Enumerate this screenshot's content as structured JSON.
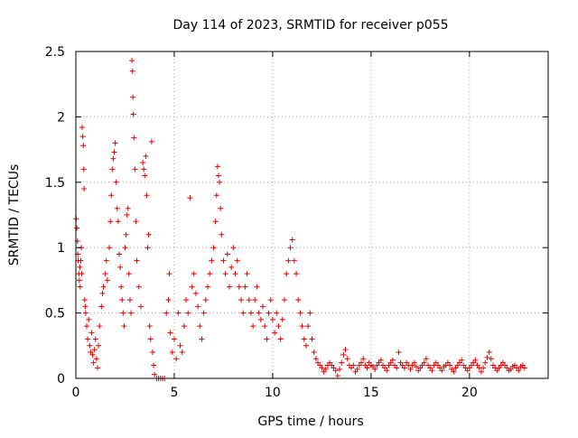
{
  "chart_data": {
    "type": "scatter",
    "title": "Day 114 of 2023, SRMTID for receiver p055",
    "xlabel": "GPS time / hours",
    "ylabel": "SRMTID / TECUs",
    "xlim": [
      0,
      24
    ],
    "ylim": [
      0,
      2.5
    ],
    "x_ticks": [
      0,
      5,
      10,
      15,
      20
    ],
    "x_tick_labels": [
      "0",
      "5",
      "10",
      "15",
      "20"
    ],
    "y_ticks": [
      0,
      0.5,
      1,
      1.5,
      2,
      2.5
    ],
    "y_tick_labels": [
      "0",
      "0.5",
      "1",
      "1.5",
      "2",
      "2.5"
    ],
    "grid": true,
    "marker": "+",
    "colors": {
      "points": "#e00000",
      "axes": "#000000",
      "grid": "#a0a0a0"
    },
    "series": [
      {
        "name": "SRMTID",
        "points": [
          [
            0.02,
            1.22
          ],
          [
            0.05,
            1.15
          ],
          [
            0.08,
            1.05
          ],
          [
            0.1,
            0.95
          ],
          [
            0.12,
            0.9
          ],
          [
            0.15,
            0.8
          ],
          [
            0.18,
            0.75
          ],
          [
            0.2,
            0.85
          ],
          [
            0.22,
            0.7
          ],
          [
            0.25,
            0.9
          ],
          [
            0.28,
            1.0
          ],
          [
            0.3,
            0.8
          ],
          [
            0.32,
            1.92
          ],
          [
            0.35,
            1.85
          ],
          [
            0.38,
            1.78
          ],
          [
            0.4,
            1.6
          ],
          [
            0.42,
            1.45
          ],
          [
            0.45,
            0.6
          ],
          [
            0.48,
            0.55
          ],
          [
            0.5,
            0.5
          ],
          [
            0.55,
            0.4
          ],
          [
            0.6,
            0.3
          ],
          [
            0.65,
            0.45
          ],
          [
            0.7,
            0.25
          ],
          [
            0.75,
            0.2
          ],
          [
            0.8,
            0.35
          ],
          [
            0.85,
            0.18
          ],
          [
            0.9,
            0.12
          ],
          [
            0.95,
            0.22
          ],
          [
            1.0,
            0.3
          ],
          [
            1.05,
            0.15
          ],
          [
            1.1,
            0.08
          ],
          [
            1.15,
            0.25
          ],
          [
            1.2,
            0.4
          ],
          [
            1.3,
            0.55
          ],
          [
            1.35,
            0.65
          ],
          [
            1.4,
            0.7
          ],
          [
            1.5,
            0.8
          ],
          [
            1.55,
            0.9
          ],
          [
            1.6,
            0.75
          ],
          [
            1.7,
            1.0
          ],
          [
            1.75,
            1.2
          ],
          [
            1.8,
            1.4
          ],
          [
            1.85,
            1.6
          ],
          [
            1.9,
            1.68
          ],
          [
            1.95,
            1.73
          ],
          [
            2.0,
            1.8
          ],
          [
            2.05,
            1.5
          ],
          [
            2.1,
            1.3
          ],
          [
            2.15,
            1.2
          ],
          [
            2.2,
            0.95
          ],
          [
            2.25,
            0.85
          ],
          [
            2.3,
            0.7
          ],
          [
            2.35,
            0.6
          ],
          [
            2.4,
            0.5
          ],
          [
            2.45,
            0.4
          ],
          [
            2.5,
            1.0
          ],
          [
            2.55,
            1.1
          ],
          [
            2.6,
            1.25
          ],
          [
            2.65,
            1.3
          ],
          [
            2.7,
            0.8
          ],
          [
            2.75,
            0.6
          ],
          [
            2.8,
            0.5
          ],
          [
            2.85,
            2.43
          ],
          [
            2.88,
            2.35
          ],
          [
            2.9,
            2.15
          ],
          [
            2.92,
            2.02
          ],
          [
            2.95,
            1.84
          ],
          [
            3.0,
            1.6
          ],
          [
            3.05,
            1.2
          ],
          [
            3.1,
            0.9
          ],
          [
            3.2,
            0.7
          ],
          [
            3.3,
            0.55
          ],
          [
            3.4,
            1.65
          ],
          [
            3.45,
            1.6
          ],
          [
            3.5,
            1.55
          ],
          [
            3.55,
            1.7
          ],
          [
            3.6,
            1.4
          ],
          [
            3.65,
            1.0
          ],
          [
            3.7,
            1.1
          ],
          [
            3.75,
            0.4
          ],
          [
            3.8,
            0.3
          ],
          [
            3.85,
            1.81
          ],
          [
            3.9,
            0.2
          ],
          [
            3.95,
            0.1
          ],
          [
            4.0,
            0.03
          ],
          [
            4.1,
            0.0
          ],
          [
            4.2,
            0.0
          ],
          [
            4.3,
            0.0
          ],
          [
            4.4,
            0.0
          ],
          [
            4.5,
            0.0
          ],
          [
            4.6,
            0.5
          ],
          [
            4.7,
            0.6
          ],
          [
            4.75,
            0.8
          ],
          [
            4.8,
            0.35
          ],
          [
            4.9,
            0.2
          ],
          [
            5.0,
            0.3
          ],
          [
            5.1,
            0.15
          ],
          [
            5.2,
            0.5
          ],
          [
            5.3,
            0.25
          ],
          [
            5.4,
            0.2
          ],
          [
            5.5,
            0.4
          ],
          [
            5.6,
            0.6
          ],
          [
            5.7,
            0.5
          ],
          [
            5.8,
            1.38
          ],
          [
            5.9,
            0.7
          ],
          [
            6.0,
            0.8
          ],
          [
            6.1,
            0.65
          ],
          [
            6.2,
            0.55
          ],
          [
            6.3,
            0.4
          ],
          [
            6.4,
            0.3
          ],
          [
            6.5,
            0.5
          ],
          [
            6.6,
            0.6
          ],
          [
            6.7,
            0.7
          ],
          [
            6.8,
            0.8
          ],
          [
            6.9,
            0.9
          ],
          [
            7.0,
            1.0
          ],
          [
            7.1,
            1.2
          ],
          [
            7.15,
            1.4
          ],
          [
            7.2,
            1.62
          ],
          [
            7.25,
            1.55
          ],
          [
            7.3,
            1.5
          ],
          [
            7.35,
            1.3
          ],
          [
            7.4,
            1.1
          ],
          [
            7.5,
            0.9
          ],
          [
            7.6,
            0.8
          ],
          [
            7.7,
            0.95
          ],
          [
            7.8,
            0.7
          ],
          [
            7.9,
            0.85
          ],
          [
            8.0,
            1.0
          ],
          [
            8.1,
            0.8
          ],
          [
            8.2,
            0.9
          ],
          [
            8.3,
            0.7
          ],
          [
            8.4,
            0.6
          ],
          [
            8.5,
            0.5
          ],
          [
            8.6,
            0.7
          ],
          [
            8.7,
            0.8
          ],
          [
            8.8,
            0.6
          ],
          [
            8.9,
            0.5
          ],
          [
            9.0,
            0.4
          ],
          [
            9.1,
            0.6
          ],
          [
            9.2,
            0.7
          ],
          [
            9.3,
            0.5
          ],
          [
            9.4,
            0.45
          ],
          [
            9.5,
            0.55
          ],
          [
            9.6,
            0.4
          ],
          [
            9.7,
            0.3
          ],
          [
            9.8,
            0.5
          ],
          [
            9.9,
            0.6
          ],
          [
            10.0,
            0.45
          ],
          [
            10.1,
            0.35
          ],
          [
            10.2,
            0.5
          ],
          [
            10.3,
            0.4
          ],
          [
            10.4,
            0.3
          ],
          [
            10.5,
            0.45
          ],
          [
            10.6,
            0.6
          ],
          [
            10.7,
            0.8
          ],
          [
            10.8,
            0.9
          ],
          [
            10.9,
            1.0
          ],
          [
            11.0,
            1.06
          ],
          [
            11.1,
            0.9
          ],
          [
            11.2,
            0.8
          ],
          [
            11.3,
            0.6
          ],
          [
            11.4,
            0.5
          ],
          [
            11.5,
            0.4
          ],
          [
            11.6,
            0.3
          ],
          [
            11.7,
            0.25
          ],
          [
            11.8,
            0.4
          ],
          [
            11.9,
            0.5
          ],
          [
            12.0,
            0.3
          ],
          [
            12.1,
            0.2
          ],
          [
            12.2,
            0.15
          ],
          [
            12.3,
            0.12
          ],
          [
            12.4,
            0.1
          ],
          [
            12.5,
            0.08
          ],
          [
            12.6,
            0.05
          ],
          [
            12.7,
            0.07
          ],
          [
            12.8,
            0.1
          ],
          [
            12.9,
            0.12
          ],
          [
            13.0,
            0.1
          ],
          [
            13.1,
            0.08
          ],
          [
            13.2,
            0.06
          ],
          [
            13.3,
            0.02
          ],
          [
            13.4,
            0.07
          ],
          [
            13.5,
            0.12
          ],
          [
            13.6,
            0.18
          ],
          [
            13.7,
            0.22
          ],
          [
            13.8,
            0.15
          ],
          [
            13.9,
            0.1
          ],
          [
            14.0,
            0.08
          ],
          [
            14.1,
            0.1
          ],
          [
            14.2,
            0.05
          ],
          [
            14.3,
            0.07
          ],
          [
            14.4,
            0.1
          ],
          [
            14.5,
            0.12
          ],
          [
            14.6,
            0.15
          ],
          [
            14.7,
            0.1
          ],
          [
            14.8,
            0.08
          ],
          [
            14.9,
            0.12
          ],
          [
            15.0,
            0.1
          ],
          [
            15.1,
            0.09
          ],
          [
            15.2,
            0.07
          ],
          [
            15.3,
            0.1
          ],
          [
            15.4,
            0.12
          ],
          [
            15.5,
            0.14
          ],
          [
            15.6,
            0.1
          ],
          [
            15.7,
            0.08
          ],
          [
            15.8,
            0.06
          ],
          [
            15.9,
            0.1
          ],
          [
            16.0,
            0.12
          ],
          [
            16.1,
            0.14
          ],
          [
            16.2,
            0.1
          ],
          [
            16.3,
            0.08
          ],
          [
            16.4,
            0.2
          ],
          [
            16.5,
            0.12
          ],
          [
            16.6,
            0.1
          ],
          [
            16.7,
            0.08
          ],
          [
            16.8,
            0.12
          ],
          [
            16.9,
            0.1
          ],
          [
            17.0,
            0.07
          ],
          [
            17.1,
            0.1
          ],
          [
            17.2,
            0.12
          ],
          [
            17.3,
            0.09
          ],
          [
            17.4,
            0.06
          ],
          [
            17.5,
            0.08
          ],
          [
            17.6,
            0.1
          ],
          [
            17.7,
            0.12
          ],
          [
            17.8,
            0.15
          ],
          [
            17.9,
            0.1
          ],
          [
            18.0,
            0.08
          ],
          [
            18.1,
            0.06
          ],
          [
            18.2,
            0.1
          ],
          [
            18.3,
            0.12
          ],
          [
            18.4,
            0.1
          ],
          [
            18.5,
            0.08
          ],
          [
            18.6,
            0.06
          ],
          [
            18.7,
            0.09
          ],
          [
            18.8,
            0.1
          ],
          [
            18.9,
            0.12
          ],
          [
            19.0,
            0.1
          ],
          [
            19.1,
            0.07
          ],
          [
            19.2,
            0.05
          ],
          [
            19.3,
            0.08
          ],
          [
            19.4,
            0.1
          ],
          [
            19.5,
            0.12
          ],
          [
            19.6,
            0.14
          ],
          [
            19.7,
            0.1
          ],
          [
            19.8,
            0.08
          ],
          [
            19.9,
            0.06
          ],
          [
            20.0,
            0.08
          ],
          [
            20.1,
            0.1
          ],
          [
            20.2,
            0.12
          ],
          [
            20.3,
            0.14
          ],
          [
            20.4,
            0.1
          ],
          [
            20.5,
            0.08
          ],
          [
            20.6,
            0.05
          ],
          [
            20.7,
            0.08
          ],
          [
            20.8,
            0.12
          ],
          [
            20.9,
            0.16
          ],
          [
            21.0,
            0.2
          ],
          [
            21.1,
            0.15
          ],
          [
            21.2,
            0.1
          ],
          [
            21.3,
            0.08
          ],
          [
            21.4,
            0.06
          ],
          [
            21.5,
            0.08
          ],
          [
            21.6,
            0.1
          ],
          [
            21.7,
            0.12
          ],
          [
            21.8,
            0.1
          ],
          [
            21.9,
            0.08
          ],
          [
            22.0,
            0.06
          ],
          [
            22.1,
            0.07
          ],
          [
            22.2,
            0.09
          ],
          [
            22.3,
            0.1
          ],
          [
            22.4,
            0.08
          ],
          [
            22.5,
            0.06
          ],
          [
            22.6,
            0.09
          ],
          [
            22.7,
            0.1
          ],
          [
            22.8,
            0.08
          ]
        ]
      }
    ]
  }
}
